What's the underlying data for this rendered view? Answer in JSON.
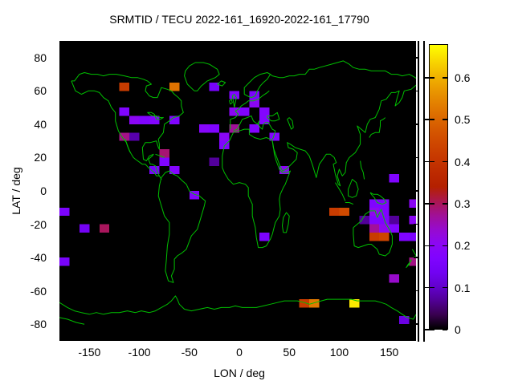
{
  "title": "SRMTID / TECU 2022-161_16920-2022-161_17790",
  "axes": {
    "xlabel": "LON / deg",
    "ylabel": "LAT / deg",
    "xticks": [
      -150,
      -100,
      -50,
      0,
      50,
      100,
      150
    ],
    "yticks": [
      80,
      60,
      40,
      20,
      0,
      -20,
      -40,
      -60,
      -80
    ],
    "xrange": [
      -180,
      180
    ],
    "yrange": [
      -90,
      90
    ]
  },
  "colorbar": {
    "min": 0,
    "max": 0.68,
    "ticks": [
      0,
      0.1,
      0.2,
      0.3,
      0.4,
      0.5,
      0.6
    ],
    "palette": "gnuplot pm3d rgbformulae 7,5,15 (black-purple-violet-red-orange-yellow)"
  },
  "colors": {
    "coastline": "#00c000",
    "plot_background": "#000000",
    "page_background": "#ffffff",
    "text": "#000000"
  },
  "chart_data": {
    "type": "heatmap",
    "title": "SRMTID / TECU 2022-161_16920-2022-161_17790",
    "xlabel": "LON / deg",
    "ylabel": "LAT / deg",
    "xlim": [
      -180,
      180
    ],
    "ylim": [
      -90,
      90
    ],
    "colorbar_range": [
      0,
      0.68
    ],
    "cell_size": {
      "lon_deg": 10,
      "lat_deg": 5
    },
    "background_value": 0,
    "cells_format": [
      "lon_west_deg",
      "lat_south_deg",
      "value_TECU"
    ],
    "cells": [
      [
        -120,
        60,
        0.42
      ],
      [
        -70,
        60,
        0.52
      ],
      [
        -30,
        60,
        0.15
      ],
      [
        -10,
        55,
        0.17
      ],
      [
        10,
        55,
        0.16
      ],
      [
        10,
        50,
        0.2
      ],
      [
        -120,
        45,
        0.17
      ],
      [
        -10,
        45,
        0.2
      ],
      [
        0,
        45,
        0.17
      ],
      [
        20,
        45,
        0.18
      ],
      [
        -110,
        40,
        0.2
      ],
      [
        -100,
        40,
        0.17
      ],
      [
        -90,
        40,
        0.18
      ],
      [
        -70,
        40,
        0.17
      ],
      [
        20,
        40,
        0.18
      ],
      [
        -40,
        35,
        0.19
      ],
      [
        -30,
        35,
        0.17
      ],
      [
        -10,
        35,
        0.27
      ],
      [
        10,
        35,
        0.18
      ],
      [
        -120,
        30,
        0.28
      ],
      [
        -110,
        30,
        0.08
      ],
      [
        -20,
        30,
        0.2
      ],
      [
        30,
        30,
        0.18
      ],
      [
        -20,
        25,
        0.17
      ],
      [
        -80,
        20,
        0.29
      ],
      [
        -80,
        15,
        0.17
      ],
      [
        -30,
        15,
        0.07
      ],
      [
        -90,
        10,
        0.15
      ],
      [
        -70,
        10,
        0.18
      ],
      [
        40,
        10,
        0.2
      ],
      [
        150,
        5,
        0.17
      ],
      [
        -50,
        -5,
        0.17
      ],
      [
        130,
        -10,
        0.17
      ],
      [
        140,
        -10,
        0.17
      ],
      [
        170,
        -10,
        0.2
      ],
      [
        -180,
        -15,
        0.16
      ],
      [
        90,
        -15,
        0.42
      ],
      [
        100,
        -15,
        0.45
      ],
      [
        130,
        -15,
        0.21
      ],
      [
        140,
        -15,
        0.17
      ],
      [
        120,
        -20,
        0.07
      ],
      [
        130,
        -20,
        0.17
      ],
      [
        140,
        -20,
        0.17
      ],
      [
        150,
        -20,
        0.07
      ],
      [
        170,
        -20,
        0.2
      ],
      [
        -160,
        -25,
        0.14
      ],
      [
        -140,
        -25,
        0.3
      ],
      [
        130,
        -25,
        0.27
      ],
      [
        140,
        -25,
        0.21
      ],
      [
        150,
        -25,
        0.17
      ],
      [
        20,
        -30,
        0.16
      ],
      [
        130,
        -30,
        0.42
      ],
      [
        140,
        -30,
        0.44
      ],
      [
        160,
        -30,
        0.17
      ],
      [
        170,
        -30,
        0.16
      ],
      [
        -180,
        -45,
        0.15
      ],
      [
        170,
        -45,
        0.28
      ],
      [
        150,
        -55,
        0.24
      ],
      [
        60,
        -70,
        0.42
      ],
      [
        70,
        -70,
        0.53
      ],
      [
        110,
        -70,
        0.66
      ],
      [
        160,
        -80,
        0.12
      ]
    ]
  }
}
